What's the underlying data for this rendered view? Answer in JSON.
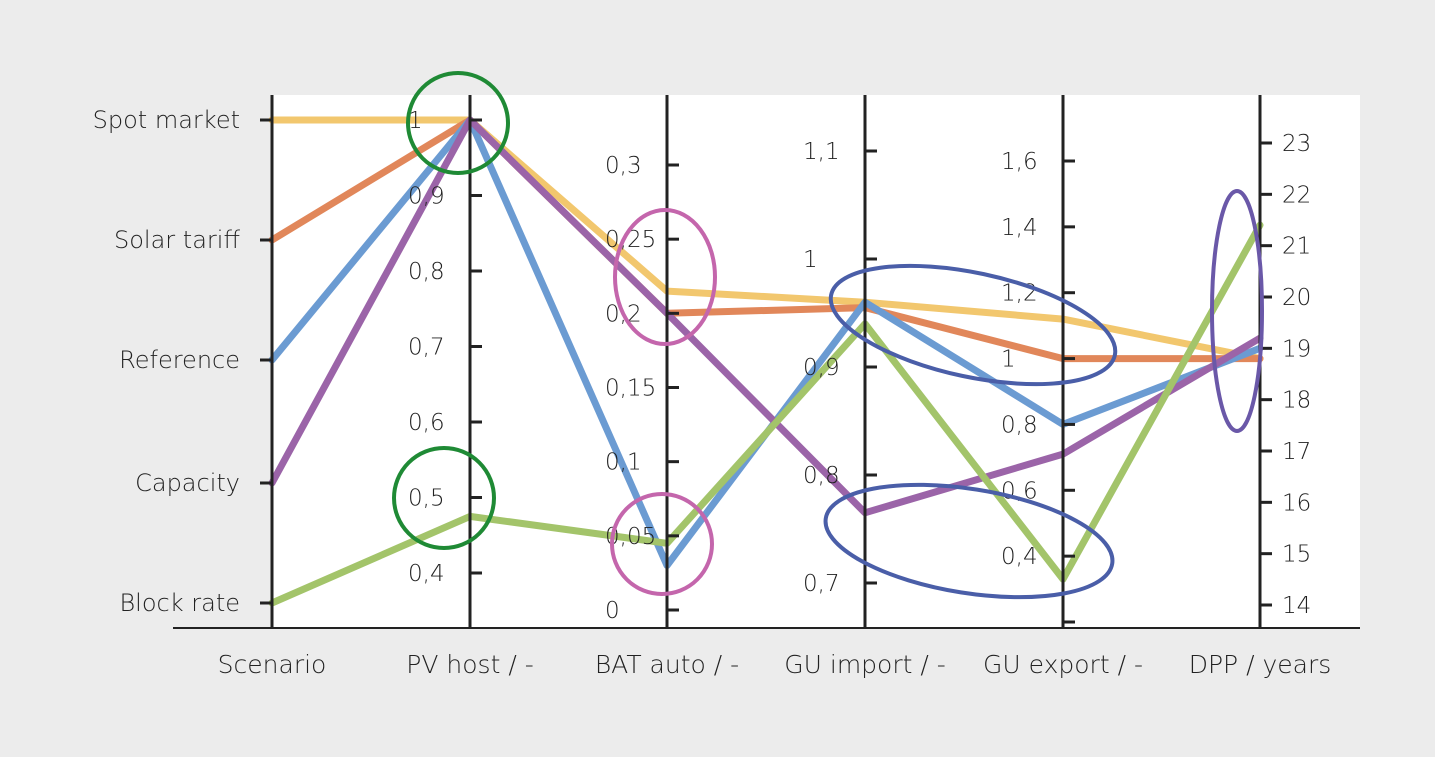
{
  "chart_data": {
    "type": "parallel-coordinates",
    "title": "",
    "grid": false,
    "legend": "none",
    "axes": [
      {
        "name": "Scenario",
        "categorical": true,
        "categories": [
          "Block rate",
          "Capacity",
          "Reference",
          "Solar tariff",
          "Spot market"
        ]
      },
      {
        "name": "PV host / -",
        "min": 0.36,
        "max": 1.0,
        "ticks": [
          0.4,
          0.5,
          0.6,
          0.7,
          0.8,
          0.9,
          1
        ],
        "tick_labels": [
          "0,4",
          "0,5",
          "0,6",
          "0,7",
          "0,8",
          "0,9",
          "1"
        ]
      },
      {
        "name": "BAT auto / -",
        "min": 0.0,
        "max": 0.34,
        "ticks": [
          0,
          0.05,
          0.1,
          0.15,
          0.2,
          0.25,
          0.3
        ],
        "tick_labels": [
          "0",
          "0,05",
          "0,1",
          "0,15",
          "0,2",
          "0,25",
          "0,3"
        ]
      },
      {
        "name": "GU import / -",
        "min": 0.66,
        "max": 1.145,
        "ticks": [
          0.7,
          0.8,
          0.9,
          1.0,
          1.1
        ],
        "tick_labels": [
          "0,7",
          "0,8",
          "0,9",
          "1",
          "1,1"
        ]
      },
      {
        "name": "GU export / -",
        "min": 0.2,
        "max": 1.78,
        "ticks": [
          0.2,
          0.4,
          0.6,
          0.8,
          1.0,
          1.2,
          1.4,
          1.6
        ],
        "tick_labels": [
          "",
          "0,4",
          "0,6",
          "0,8",
          "1",
          "1,2",
          "1,4",
          "1,6"
        ]
      },
      {
        "name": "DPP / years",
        "min": 13.6,
        "max": 23.9,
        "ticks": [
          14,
          15,
          16,
          17,
          18,
          19,
          20,
          21,
          22,
          23
        ],
        "tick_labels": [
          "14",
          "15",
          "16",
          "17",
          "18",
          "19",
          "20",
          "21",
          "22",
          "23"
        ]
      }
    ],
    "series": [
      {
        "name": "Spot market",
        "color": "#f2c76e",
        "values": [
          4,
          1.0,
          0.215,
          0.96,
          1.12,
          18.8
        ]
      },
      {
        "name": "Solar tariff",
        "color": "#e1875a",
        "values": [
          3,
          1.0,
          0.2,
          0.955,
          1.0,
          18.8
        ]
      },
      {
        "name": "Reference",
        "color": "#6b9bd2",
        "values": [
          2,
          1.0,
          0.03,
          0.96,
          0.8,
          19.0
        ]
      },
      {
        "name": "Capacity",
        "color": "#9b64a8",
        "values": [
          1,
          1.0,
          0.2,
          0.765,
          0.71,
          19.2
        ]
      },
      {
        "name": "Block rate",
        "color": "#a3c46a",
        "values": [
          0,
          0.475,
          0.045,
          0.94,
          0.33,
          21.4
        ]
      }
    ],
    "annotations": [
      {
        "shape": "circle",
        "color": "#1f8a35",
        "axis": "PV host / -",
        "value": 0.99
      },
      {
        "shape": "circle",
        "color": "#1f8a35",
        "axis": "PV host / -",
        "value": 0.5
      },
      {
        "shape": "ellipse",
        "color": "#c466ac",
        "axis": "BAT auto / -",
        "value": 0.22
      },
      {
        "shape": "ellipse",
        "color": "#c466ac",
        "axis": "BAT auto / -",
        "value": 0.045
      },
      {
        "shape": "ellipse",
        "color": "#4a5ea8",
        "span": [
          "GU import / -",
          "GU export / -"
        ],
        "position": "upper"
      },
      {
        "shape": "ellipse",
        "color": "#4a5ea8",
        "span": [
          "GU import / -",
          "GU export / -"
        ],
        "position": "lower"
      },
      {
        "shape": "ellipse",
        "color": "#6a58a8",
        "axis": "DPP / years",
        "value": 19.5
      }
    ]
  }
}
